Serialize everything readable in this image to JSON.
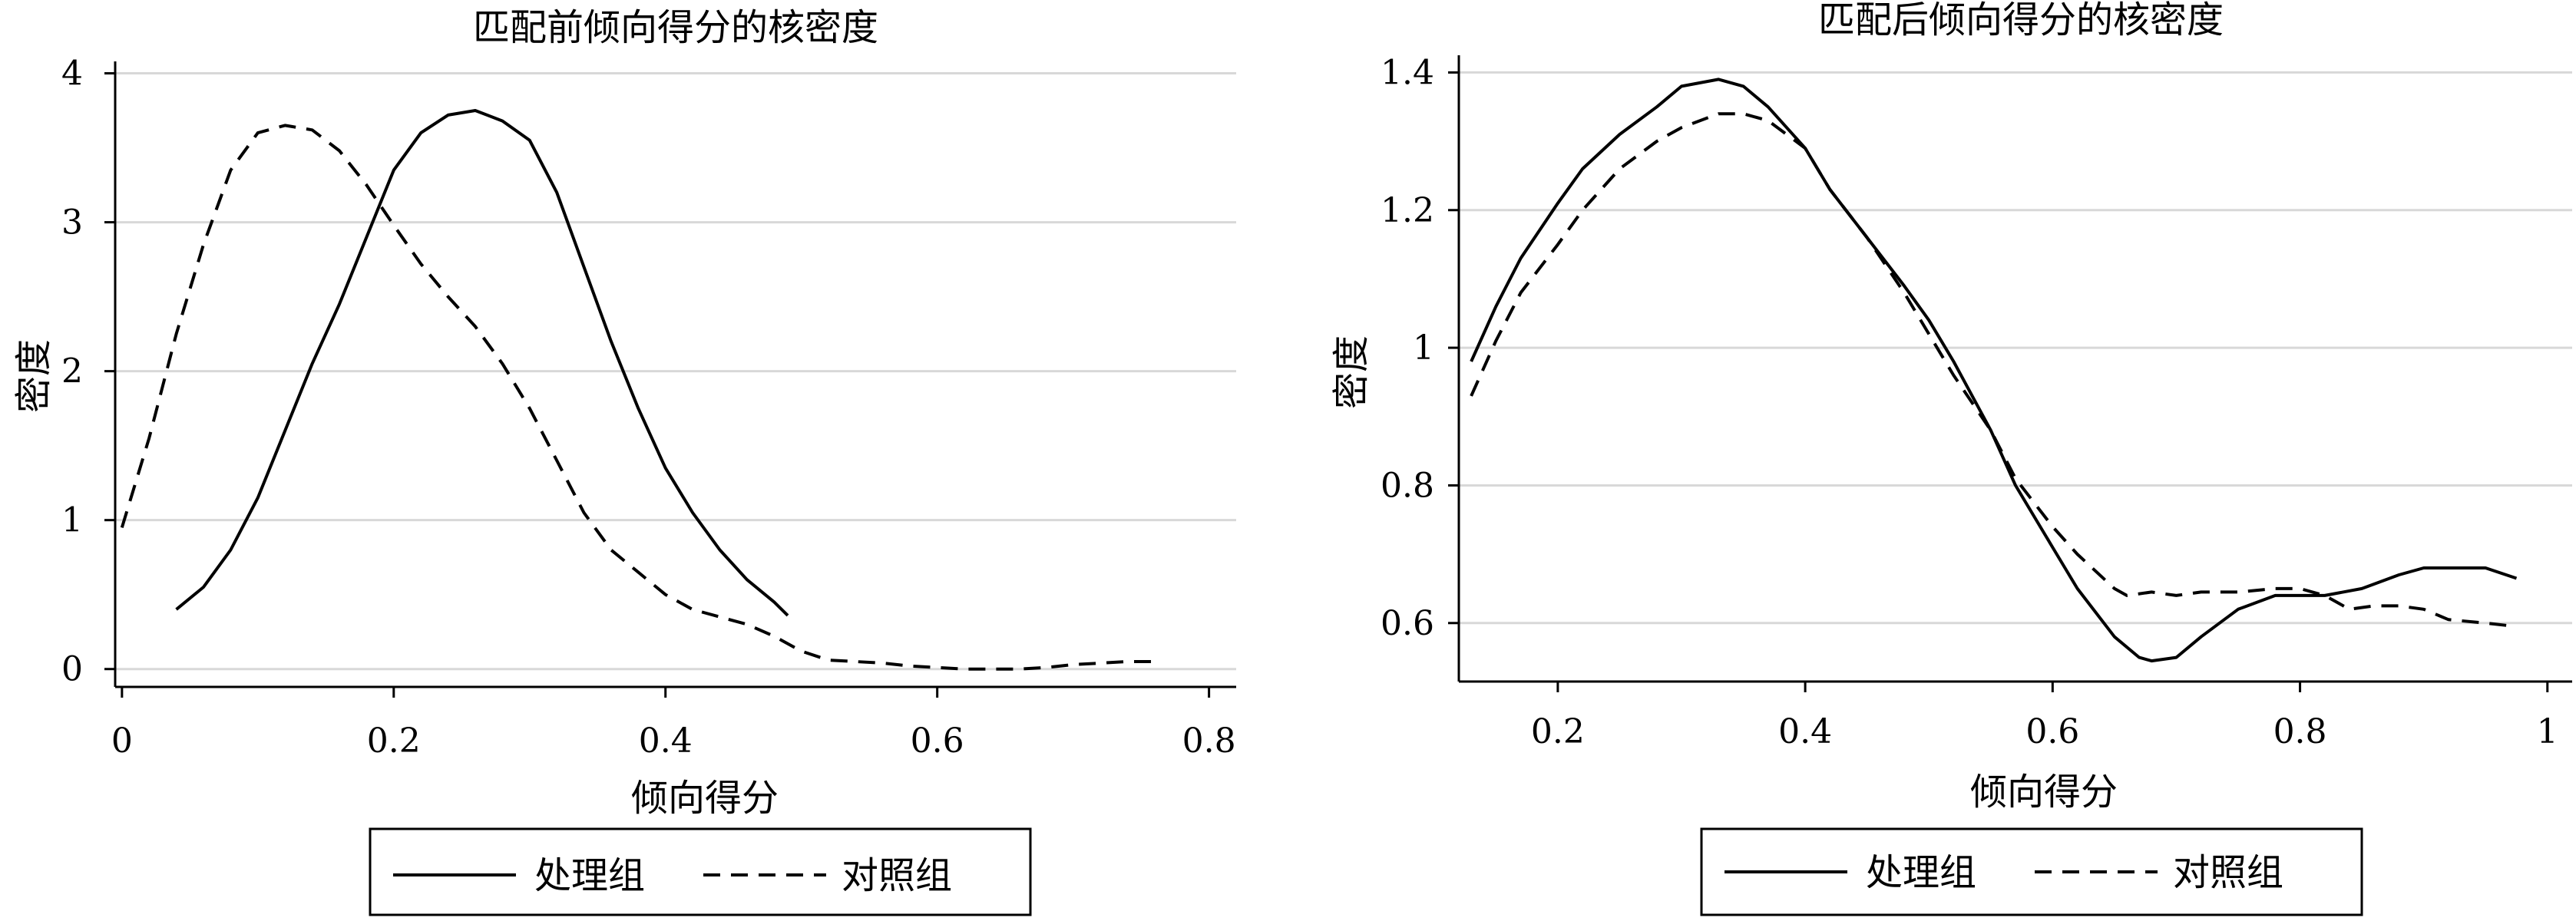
{
  "colors": {
    "line": "#000000",
    "grid": "#d8d8d8",
    "background": "#ffffff"
  },
  "chart_data": [
    {
      "type": "line",
      "title": "匹配前倾向得分的核密度",
      "xlabel": "倾向得分",
      "ylabel": "密度",
      "xlim": [
        -0.005,
        0.82
      ],
      "ylim": [
        -0.12,
        4.08
      ],
      "xticks": [
        0,
        0.2,
        0.4,
        0.6,
        0.8
      ],
      "xtick_labels": [
        "0",
        "0.2",
        "0.4",
        "0.6",
        "0.8"
      ],
      "yticks": [
        0,
        1,
        2,
        3,
        4
      ],
      "ytick_labels": [
        "0",
        "1",
        "2",
        "3",
        "4"
      ],
      "grid": true,
      "legend_position": "bottom",
      "series": [
        {
          "name": "处理组",
          "dash": "solid",
          "points": [
            [
              0.04,
              0.4
            ],
            [
              0.06,
              0.55
            ],
            [
              0.08,
              0.8
            ],
            [
              0.1,
              1.15
            ],
            [
              0.12,
              1.6
            ],
            [
              0.14,
              2.05
            ],
            [
              0.16,
              2.45
            ],
            [
              0.18,
              2.9
            ],
            [
              0.2,
              3.35
            ],
            [
              0.22,
              3.6
            ],
            [
              0.24,
              3.72
            ],
            [
              0.26,
              3.75
            ],
            [
              0.28,
              3.68
            ],
            [
              0.3,
              3.55
            ],
            [
              0.32,
              3.2
            ],
            [
              0.34,
              2.7
            ],
            [
              0.36,
              2.2
            ],
            [
              0.38,
              1.75
            ],
            [
              0.4,
              1.35
            ],
            [
              0.42,
              1.05
            ],
            [
              0.44,
              0.8
            ],
            [
              0.46,
              0.6
            ],
            [
              0.48,
              0.45
            ],
            [
              0.49,
              0.36
            ]
          ]
        },
        {
          "name": "对照组",
          "dash": "dashed",
          "points": [
            [
              0.0,
              0.95
            ],
            [
              0.02,
              1.55
            ],
            [
              0.04,
              2.25
            ],
            [
              0.06,
              2.85
            ],
            [
              0.08,
              3.35
            ],
            [
              0.1,
              3.6
            ],
            [
              0.12,
              3.65
            ],
            [
              0.14,
              3.62
            ],
            [
              0.16,
              3.48
            ],
            [
              0.18,
              3.25
            ],
            [
              0.2,
              2.98
            ],
            [
              0.22,
              2.72
            ],
            [
              0.24,
              2.5
            ],
            [
              0.26,
              2.3
            ],
            [
              0.28,
              2.05
            ],
            [
              0.3,
              1.75
            ],
            [
              0.32,
              1.4
            ],
            [
              0.34,
              1.05
            ],
            [
              0.36,
              0.8
            ],
            [
              0.38,
              0.65
            ],
            [
              0.4,
              0.5
            ],
            [
              0.42,
              0.4
            ],
            [
              0.44,
              0.35
            ],
            [
              0.46,
              0.3
            ],
            [
              0.48,
              0.22
            ],
            [
              0.5,
              0.12
            ],
            [
              0.52,
              0.06
            ],
            [
              0.54,
              0.05
            ],
            [
              0.56,
              0.04
            ],
            [
              0.58,
              0.02
            ],
            [
              0.6,
              0.01
            ],
            [
              0.62,
              0.0
            ],
            [
              0.64,
              0.0
            ],
            [
              0.66,
              0.0
            ],
            [
              0.68,
              0.01
            ],
            [
              0.7,
              0.03
            ],
            [
              0.72,
              0.04
            ],
            [
              0.74,
              0.05
            ],
            [
              0.76,
              0.05
            ]
          ]
        }
      ],
      "legend_labels": [
        "处理组",
        "对照组"
      ]
    },
    {
      "type": "line",
      "title": "匹配后倾向得分的核密度",
      "xlabel": "倾向得分",
      "ylabel": "密度",
      "xlim": [
        0.12,
        1.02
      ],
      "ylim": [
        0.515,
        1.425
      ],
      "xticks": [
        0.2,
        0.4,
        0.6,
        0.8,
        1
      ],
      "xtick_labels": [
        "0.2",
        "0.4",
        "0.6",
        "0.8",
        "1"
      ],
      "yticks": [
        0.6,
        0.8,
        1,
        1.2,
        1.4
      ],
      "ytick_labels": [
        "0.6",
        "0.8",
        "1",
        "1.2",
        "1.4"
      ],
      "grid": true,
      "legend_position": "bottom",
      "series": [
        {
          "name": "处理组",
          "dash": "solid",
          "points": [
            [
              0.13,
              0.98
            ],
            [
              0.15,
              1.06
            ],
            [
              0.17,
              1.13
            ],
            [
              0.2,
              1.21
            ],
            [
              0.22,
              1.26
            ],
            [
              0.25,
              1.31
            ],
            [
              0.28,
              1.35
            ],
            [
              0.3,
              1.38
            ],
            [
              0.33,
              1.39
            ],
            [
              0.35,
              1.38
            ],
            [
              0.37,
              1.35
            ],
            [
              0.4,
              1.29
            ],
            [
              0.42,
              1.23
            ],
            [
              0.45,
              1.16
            ],
            [
              0.48,
              1.09
            ],
            [
              0.5,
              1.04
            ],
            [
              0.52,
              0.98
            ],
            [
              0.55,
              0.88
            ],
            [
              0.57,
              0.8
            ],
            [
              0.6,
              0.71
            ],
            [
              0.62,
              0.65
            ],
            [
              0.65,
              0.58
            ],
            [
              0.67,
              0.55
            ],
            [
              0.68,
              0.545
            ],
            [
              0.7,
              0.55
            ],
            [
              0.72,
              0.58
            ],
            [
              0.75,
              0.62
            ],
            [
              0.78,
              0.64
            ],
            [
              0.8,
              0.64
            ],
            [
              0.82,
              0.64
            ],
            [
              0.85,
              0.65
            ],
            [
              0.88,
              0.67
            ],
            [
              0.9,
              0.68
            ],
            [
              0.93,
              0.68
            ],
            [
              0.95,
              0.68
            ],
            [
              0.975,
              0.665
            ]
          ]
        },
        {
          "name": "对照组",
          "dash": "dashed",
          "points": [
            [
              0.13,
              0.93
            ],
            [
              0.15,
              1.01
            ],
            [
              0.17,
              1.08
            ],
            [
              0.2,
              1.15
            ],
            [
              0.22,
              1.2
            ],
            [
              0.25,
              1.26
            ],
            [
              0.28,
              1.3
            ],
            [
              0.3,
              1.32
            ],
            [
              0.33,
              1.34
            ],
            [
              0.35,
              1.34
            ],
            [
              0.37,
              1.33
            ],
            [
              0.4,
              1.29
            ],
            [
              0.42,
              1.23
            ],
            [
              0.45,
              1.16
            ],
            [
              0.48,
              1.08
            ],
            [
              0.5,
              1.02
            ],
            [
              0.52,
              0.96
            ],
            [
              0.55,
              0.88
            ],
            [
              0.57,
              0.81
            ],
            [
              0.6,
              0.74
            ],
            [
              0.62,
              0.7
            ],
            [
              0.65,
              0.65
            ],
            [
              0.66,
              0.64
            ],
            [
              0.68,
              0.645
            ],
            [
              0.7,
              0.64
            ],
            [
              0.72,
              0.645
            ],
            [
              0.75,
              0.645
            ],
            [
              0.78,
              0.65
            ],
            [
              0.8,
              0.65
            ],
            [
              0.82,
              0.64
            ],
            [
              0.84,
              0.62
            ],
            [
              0.86,
              0.625
            ],
            [
              0.88,
              0.625
            ],
            [
              0.9,
              0.62
            ],
            [
              0.92,
              0.605
            ],
            [
              0.95,
              0.6
            ],
            [
              0.975,
              0.595
            ]
          ]
        }
      ],
      "legend_labels": [
        "处理组",
        "对照组"
      ]
    }
  ]
}
